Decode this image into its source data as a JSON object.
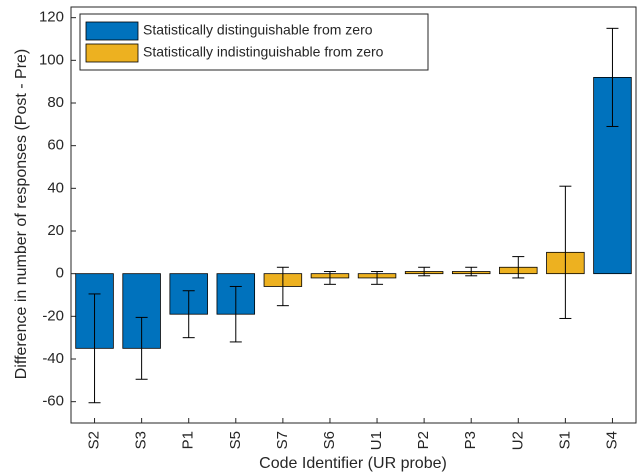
{
  "chart_data": {
    "type": "bar",
    "x_label": "Code Identifier (UR probe)",
    "y_label": "Difference in number of responses (Post - Pre)",
    "categories": [
      "S2",
      "S3",
      "P1",
      "S5",
      "S7",
      "S6",
      "U1",
      "P2",
      "P3",
      "U2",
      "S1",
      "S4"
    ],
    "series": [
      {
        "name": "Statistically distinguishable from zero",
        "color": "#0072bd",
        "values": [
          -35,
          -35,
          -19,
          -19,
          null,
          null,
          null,
          null,
          null,
          null,
          null,
          92
        ],
        "errors": [
          25.5,
          14.5,
          11,
          13,
          null,
          null,
          null,
          null,
          null,
          null,
          null,
          23
        ]
      },
      {
        "name": "Statistically indistinguishable from zero",
        "color": "#edb120",
        "values": [
          null,
          null,
          null,
          null,
          -6,
          -2,
          -2,
          1,
          1,
          3,
          10,
          null
        ],
        "errors": [
          null,
          null,
          null,
          null,
          9,
          3,
          3,
          2,
          2,
          5,
          31,
          null
        ]
      }
    ],
    "ylim": [
      -70,
      125
    ],
    "yticks": [
      -60,
      -40,
      -20,
      0,
      20,
      40,
      60,
      80,
      100,
      120
    ],
    "grid": false,
    "legend": "upper-left"
  }
}
